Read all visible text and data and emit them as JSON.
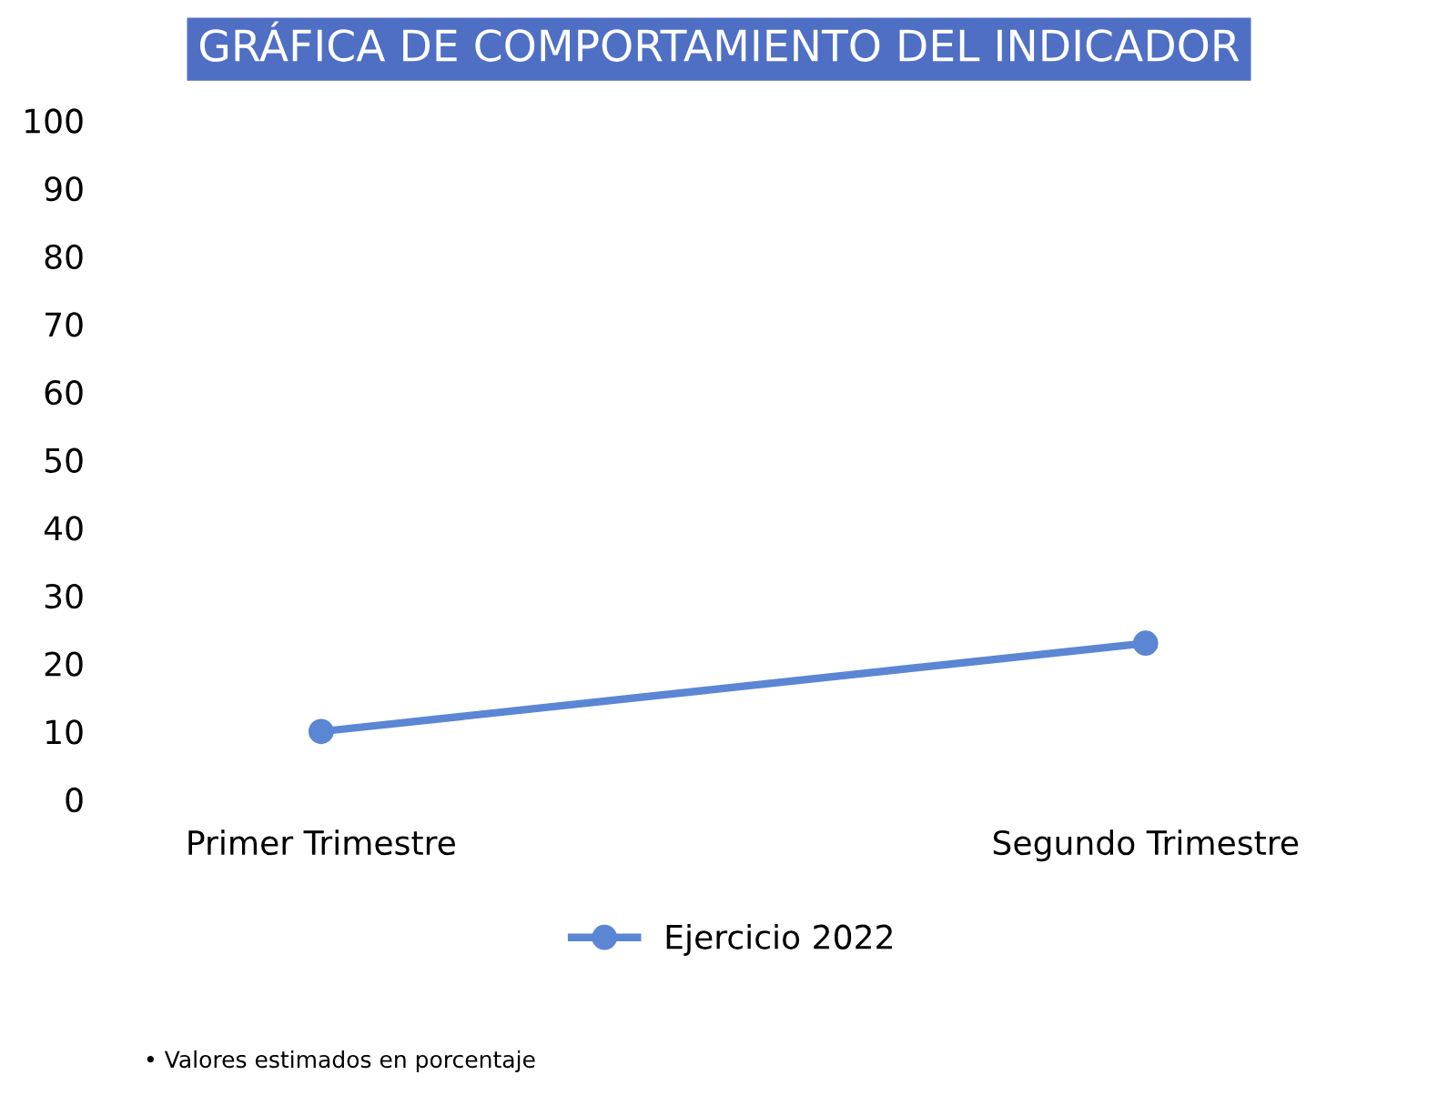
{
  "chart_data": {
    "type": "line",
    "title": "GRÁFICA DE COMPORTAMIENTO DEL INDICADOR",
    "categories": [
      "Primer Trimestre",
      "Segundo Trimestre"
    ],
    "series": [
      {
        "name": "Ejercicio 2022",
        "color": "#5b86d4",
        "values": [
          10,
          23
        ]
      }
    ],
    "ylim": [
      0,
      100
    ],
    "yticks": [
      0,
      10,
      20,
      30,
      40,
      50,
      60,
      70,
      80,
      90,
      100
    ],
    "grid": false,
    "legend": "bottom",
    "marker": "circle",
    "line_style": "solid",
    "annotations": [
      "• Valores estimados en porcentaje"
    ]
  }
}
